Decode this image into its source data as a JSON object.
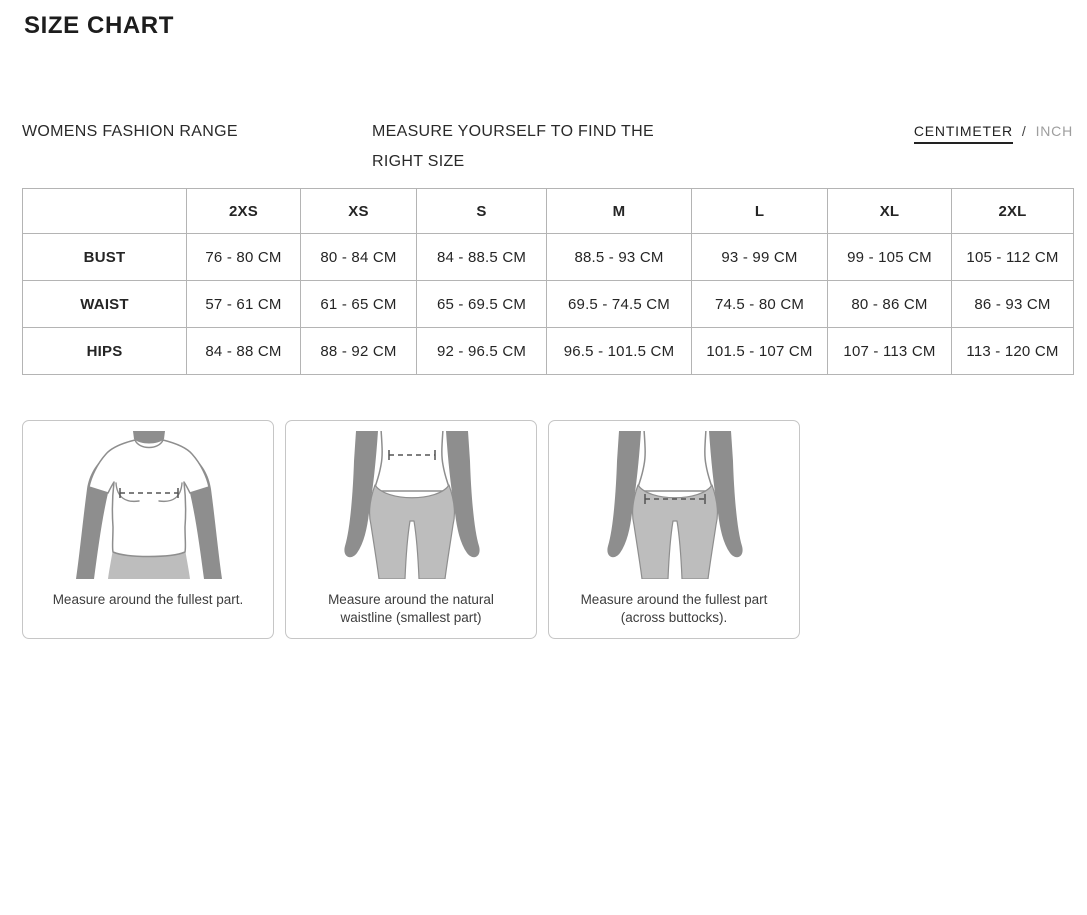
{
  "page": {
    "title": "SIZE CHART"
  },
  "section_header": {
    "range_label": "WOMENS FASHION RANGE",
    "instruction": "MEASURE YOURSELF TO FIND THE RIGHT SIZE",
    "unit_toggle": {
      "options": [
        "CENTIMETER",
        "INCH"
      ],
      "separator": "/",
      "selected": "CENTIMETER"
    }
  },
  "size_table": {
    "columns": [
      "",
      "2XS",
      "XS",
      "S",
      "M",
      "L",
      "XL",
      "2XL"
    ],
    "rows": [
      {
        "label": "BUST",
        "values": [
          "76 - 80 CM",
          "80 - 84 CM",
          "84 - 88.5 CM",
          "88.5 - 93 CM",
          "93 - 99 CM",
          "99 - 105 CM",
          "105 - 112 CM"
        ]
      },
      {
        "label": "WAIST",
        "values": [
          "57 - 61 CM",
          "61 - 65 CM",
          "65 - 69.5 CM",
          "69.5 - 74.5 CM",
          "74.5 - 80 CM",
          "80 - 86 CM",
          "86 - 93 CM"
        ]
      },
      {
        "label": "HIPS",
        "values": [
          "84 - 88 CM",
          "88 - 92 CM",
          "92 - 96.5 CM",
          "96.5 - 101.5 CM",
          "101.5 - 107 CM",
          "107 - 113 CM",
          "113 - 120 CM"
        ]
      }
    ]
  },
  "measure_cards": [
    {
      "illustration": "bust-measurement",
      "caption": "Measure around the fullest part."
    },
    {
      "illustration": "waist-measurement",
      "caption": "Measure around the natural waistline (smallest part)"
    },
    {
      "illustration": "hips-measurement",
      "caption": "Measure around the fullest part (across buttocks)."
    }
  ],
  "colors": {
    "text": "#232323",
    "muted": "#9e9e9e",
    "table_border": "#b4b4b4",
    "card_border": "#c6c6c6",
    "silhouette_skin": "#8e8e8e",
    "silhouette_garment": "#bdbdbd",
    "measure_line": "#555555"
  }
}
